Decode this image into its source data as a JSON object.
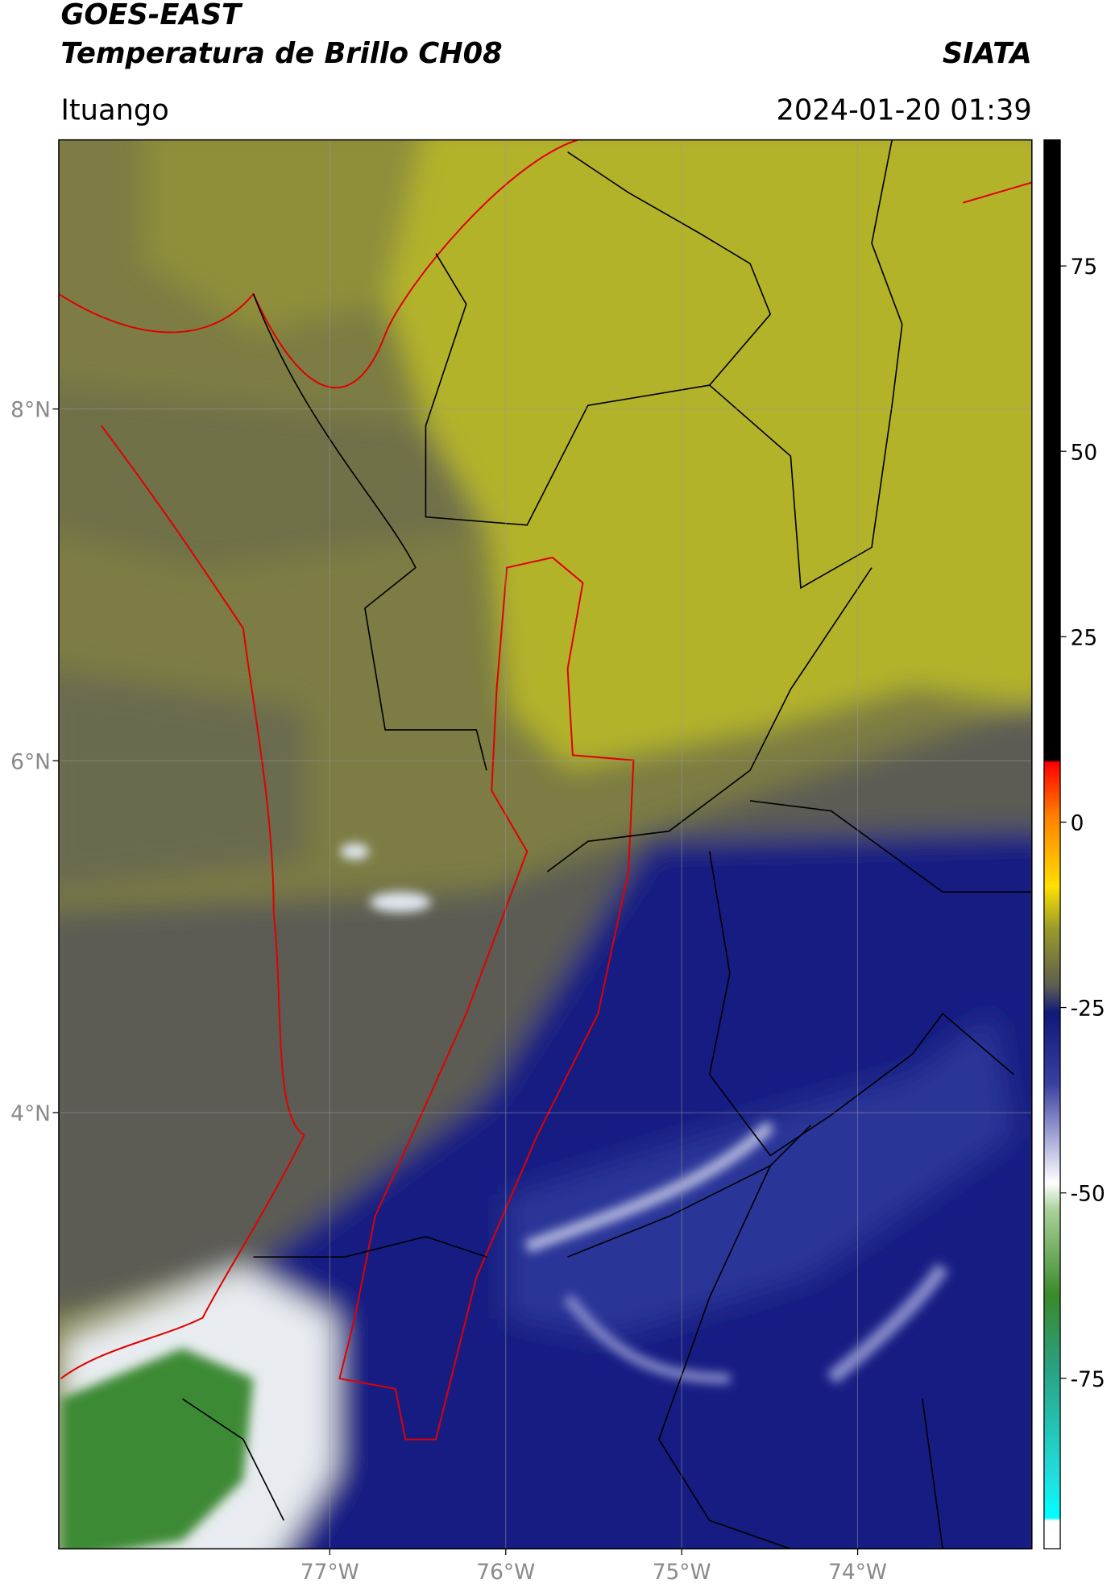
{
  "header": {
    "title_line1": "GOES-EAST",
    "title_line2": "Temperatura de Brillo CH08",
    "source": "SIATA",
    "location": "Ituango",
    "datetime": "2024-01-20 01:39"
  },
  "map": {
    "xlim": [
      -78.54,
      -73.01
    ],
    "ylim": [
      1.52,
      9.53
    ],
    "xticks": [
      {
        "value": -77,
        "label": "77°W"
      },
      {
        "value": -76,
        "label": "76°W"
      },
      {
        "value": -75,
        "label": "75°W"
      },
      {
        "value": -74,
        "label": "74°W"
      }
    ],
    "yticks": [
      {
        "value": 8,
        "label": "8°N"
      },
      {
        "value": 6,
        "label": "6°N"
      },
      {
        "value": 4,
        "label": "4°N"
      }
    ],
    "colorbar": {
      "lim": [
        -98,
        92
      ],
      "ticks": [
        75,
        50,
        25,
        0,
        -25,
        -50,
        -75
      ]
    }
  }
}
